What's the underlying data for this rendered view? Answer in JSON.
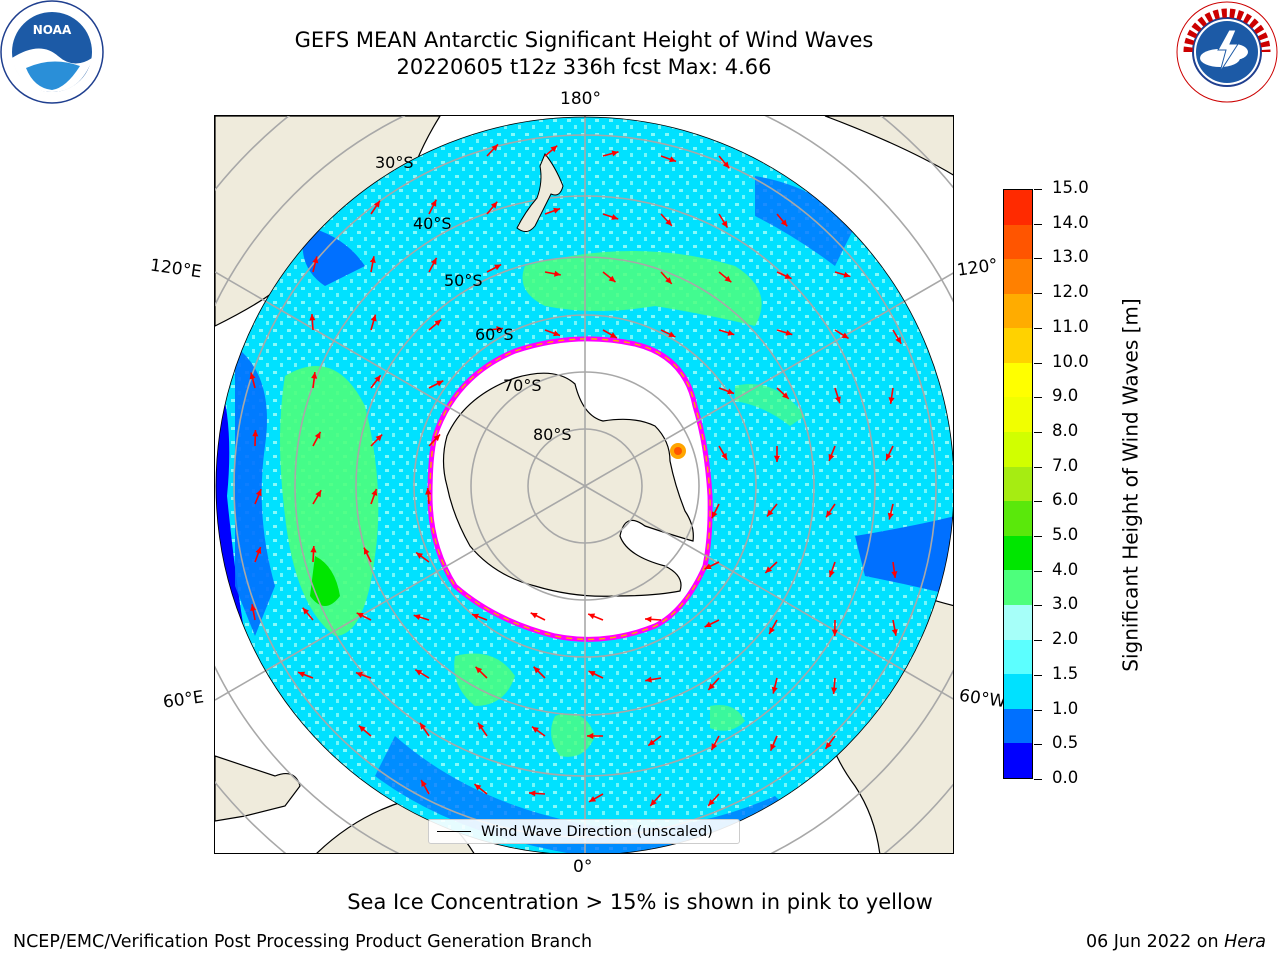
{
  "header": {
    "title_line1": "GEFS MEAN Antarctic Significant Height of Wind Waves",
    "title_line2": "20220605 t12z 336h fcst   Max: 4.66"
  },
  "logos": {
    "left_icon": "noaa-logo",
    "right_icon": "nws-logo"
  },
  "map": {
    "projection": "south-polar-stereographic",
    "lon_labels": {
      "top": "180°",
      "bottom": "0°",
      "upper_left": "120°E",
      "lower_left": "60°E",
      "upper_right": "120°",
      "lower_right": "60°W"
    },
    "lat_labels": [
      "30°S",
      "40°S",
      "50°S",
      "60°S",
      "70°S",
      "80°S"
    ],
    "arrow_color": "#ff0000",
    "land_color": "#efebdc",
    "sea_ice_edge_colors": [
      "#ff00ff",
      "#ffa500",
      "#ffff00"
    ]
  },
  "legend": {
    "label": "Wind Wave Direction (unscaled)"
  },
  "colorbar": {
    "title": "Significant Height of Wind Waves [m]",
    "levels": [
      "0.0",
      "0.5",
      "1.0",
      "1.5",
      "2.0",
      "3.0",
      "4.0",
      "5.0",
      "6.0",
      "7.0",
      "8.0",
      "9.0",
      "10.0",
      "11.0",
      "12.0",
      "13.0",
      "14.0",
      "15.0"
    ],
    "colors": [
      "#0000ff",
      "#0070ff",
      "#00e1ff",
      "#5cffff",
      "#a6fff9",
      "#4dff7c",
      "#00e600",
      "#5ae80b",
      "#a6ec12",
      "#d1ff00",
      "#f1ff00",
      "#ffff00",
      "#ffd200",
      "#ffac00",
      "#ff8000",
      "#ff5500",
      "#ff2a00"
    ]
  },
  "footnote": "Sea Ice Concentration > 15% is shown in pink to yellow",
  "footer": {
    "credit": "NCEP/EMC/Verification Post Processing Product Generation Branch",
    "date_prefix": "06 Jun 2022 on ",
    "date_machine": "Hera"
  }
}
